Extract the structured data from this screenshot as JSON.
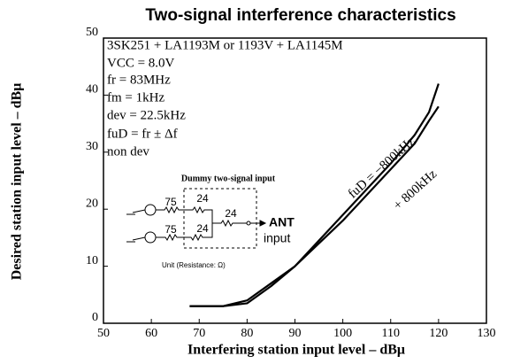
{
  "chart_data": {
    "type": "line",
    "title": "Two-signal interference characteristics",
    "x_label": "Interfering station input level – dBμ",
    "y_label": "Desired station input level – dBμ",
    "xlim": [
      50,
      130
    ],
    "xticks": [
      50,
      60,
      70,
      80,
      90,
      100,
      110,
      120,
      130
    ],
    "ylim": [
      0,
      50
    ],
    "yticks": [
      0,
      10,
      20,
      30,
      40,
      50
    ],
    "grid": false,
    "series": [
      {
        "name": "fuD = −800kHz",
        "color": "#000000",
        "x": [
          68,
          75,
          80,
          85,
          90,
          95,
          100,
          105,
          110,
          115,
          118,
          120
        ],
        "values": [
          3,
          3,
          4,
          7,
          10,
          14.5,
          19,
          23.5,
          28,
          33,
          37,
          42
        ]
      },
      {
        "name": "+ 800kHz",
        "color": "#000000",
        "x": [
          68,
          75,
          80,
          85,
          90,
          95,
          100,
          105,
          110,
          115,
          118,
          120
        ],
        "values": [
          3,
          3,
          3.5,
          6.5,
          10,
          14,
          18,
          22.5,
          27,
          31.5,
          35.5,
          38
        ]
      }
    ],
    "annotations": [
      "3SK251 + LA1193M or 1193V + LA1145M",
      "VCC = 8.0V",
      "fr = 83MHz",
      "fm = 1kHz",
      "dev = 22.5kHz",
      "fuD = fr ± Δf",
      "non dev"
    ],
    "inset": {
      "title": "Dummy two-signal input",
      "labels": [
        "75",
        "75",
        "24",
        "24",
        "24",
        "ANT",
        "input"
      ],
      "unit": "Unit (Resistance: Ω)"
    }
  }
}
